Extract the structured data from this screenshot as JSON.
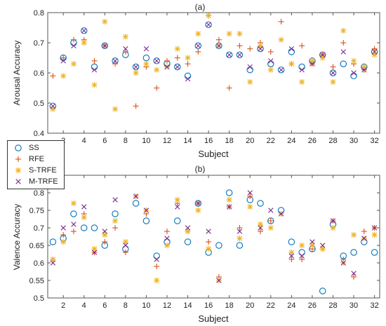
{
  "colors": {
    "SS": "#0072BD",
    "RFE": "#D95319",
    "S-TRFE": "#EDB120",
    "M-TRFE": "#7E2F8E"
  },
  "legend": {
    "items": [
      {
        "name": "SS",
        "marker": "circle"
      },
      {
        "name": "RFE",
        "marker": "plus"
      },
      {
        "name": "S-TRFE",
        "marker": "asterisk"
      },
      {
        "name": "M-TRFE",
        "marker": "cross"
      }
    ]
  },
  "chart_data": [
    {
      "type": "scatter",
      "title": "(a)",
      "xlabel": "Subject",
      "ylabel": "Arousal Accuracy",
      "xlim": [
        0.5,
        32.5
      ],
      "ylim": [
        0.4,
        0.8
      ],
      "yticks": [
        "0.4",
        "0.5",
        "0.6",
        "0.7",
        "0.8"
      ],
      "xticks": [
        "2",
        "4",
        "6",
        "8",
        "10",
        "12",
        "14",
        "16",
        "18",
        "20",
        "22",
        "24",
        "26",
        "28",
        "30",
        "32"
      ],
      "grid": false,
      "x": [
        1,
        2,
        3,
        4,
        5,
        6,
        7,
        8,
        9,
        10,
        11,
        12,
        13,
        14,
        15,
        16,
        17,
        18,
        19,
        20,
        21,
        22,
        23,
        24,
        25,
        26,
        27,
        28,
        29,
        30,
        31,
        32
      ],
      "series": [
        {
          "name": "SS",
          "values": [
            0.49,
            0.65,
            0.7,
            0.74,
            0.62,
            0.69,
            0.64,
            0.66,
            0.62,
            0.65,
            0.64,
            0.63,
            0.62,
            0.59,
            0.69,
            0.76,
            0.69,
            0.66,
            0.66,
            0.61,
            0.68,
            0.63,
            0.61,
            0.67,
            0.62,
            0.64,
            0.66,
            0.6,
            0.63,
            0.59,
            0.62,
            0.67
          ]
        },
        {
          "name": "RFE",
          "values": [
            0.59,
            0.65,
            0.71,
            0.71,
            0.64,
            0.69,
            0.63,
            0.67,
            0.49,
            0.62,
            0.55,
            0.64,
            0.65,
            0.63,
            0.67,
            0.79,
            0.71,
            0.55,
            0.69,
            0.68,
            0.7,
            0.67,
            0.77,
            0.63,
            0.69,
            0.63,
            0.66,
            0.62,
            0.7,
            0.63,
            0.61,
            0.68
          ]
        },
        {
          "name": "S-TRFE",
          "values": [
            0.48,
            0.59,
            0.63,
            0.7,
            0.56,
            0.77,
            0.48,
            0.72,
            0.6,
            0.63,
            0.61,
            0.62,
            0.68,
            0.65,
            0.73,
            0.79,
            0.69,
            0.73,
            0.73,
            0.57,
            0.69,
            0.61,
            0.71,
            0.63,
            0.57,
            0.64,
            0.65,
            0.57,
            0.74,
            0.64,
            0.62,
            0.66
          ]
        },
        {
          "name": "M-TRFE",
          "values": [
            0.49,
            0.64,
            0.69,
            0.74,
            0.61,
            0.69,
            0.64,
            0.68,
            0.62,
            0.68,
            0.64,
            0.62,
            0.62,
            0.58,
            0.69,
            0.76,
            0.69,
            0.66,
            0.66,
            0.62,
            0.68,
            0.64,
            0.61,
            0.68,
            0.61,
            0.63,
            0.66,
            0.6,
            0.67,
            0.6,
            0.61,
            0.67
          ]
        }
      ]
    },
    {
      "type": "scatter",
      "title": "(b)",
      "xlabel": "Subject",
      "ylabel": "Valence Accuracy",
      "xlim": [
        0.5,
        32.5
      ],
      "ylim": [
        0.5,
        0.85
      ],
      "yticks": [
        "0.5",
        "0.55",
        "0.6",
        "0.65",
        "0.7",
        "0.75",
        "0.8"
      ],
      "xticks": [
        "2",
        "4",
        "6",
        "8",
        "10",
        "12",
        "14",
        "16",
        "18",
        "20",
        "22",
        "24",
        "26",
        "28",
        "30",
        "32"
      ],
      "grid": false,
      "x": [
        1,
        2,
        3,
        4,
        5,
        6,
        7,
        8,
        9,
        10,
        11,
        12,
        13,
        14,
        15,
        16,
        17,
        18,
        19,
        20,
        21,
        22,
        23,
        24,
        25,
        26,
        27,
        28,
        29,
        30,
        31,
        32
      ],
      "series": [
        {
          "name": "SS",
          "values": [
            0.66,
            0.67,
            0.74,
            0.7,
            0.7,
            0.65,
            0.74,
            0.64,
            0.77,
            0.72,
            0.62,
            0.66,
            0.72,
            0.66,
            0.77,
            0.63,
            0.65,
            0.8,
            0.65,
            0.78,
            0.77,
            0.72,
            0.75,
            0.66,
            0.63,
            0.64,
            0.52,
            0.71,
            0.62,
            0.63,
            0.66,
            0.63
          ]
        },
        {
          "name": "RFE",
          "values": [
            0.61,
            0.68,
            0.69,
            0.74,
            0.63,
            0.66,
            0.7,
            0.63,
            0.79,
            0.74,
            0.59,
            0.69,
            0.77,
            0.69,
            0.77,
            0.66,
            0.56,
            0.76,
            0.7,
            0.79,
            0.69,
            0.72,
            0.74,
            0.61,
            0.61,
            0.64,
            0.64,
            0.72,
            0.61,
            0.56,
            0.69,
            0.7
          ]
        },
        {
          "name": "S-TRFE",
          "values": [
            0.61,
            0.66,
            0.77,
            0.73,
            0.64,
            0.68,
            0.72,
            0.66,
            0.79,
            0.75,
            0.55,
            0.65,
            0.78,
            0.69,
            0.75,
            0.64,
            0.55,
            0.78,
            0.67,
            0.76,
            0.71,
            0.7,
            0.74,
            0.63,
            0.65,
            0.65,
            0.64,
            0.7,
            0.6,
            0.68,
            0.67,
            0.68
          ]
        },
        {
          "name": "M-TRFE",
          "values": [
            0.6,
            0.7,
            0.71,
            0.76,
            0.63,
            0.69,
            0.78,
            0.65,
            0.79,
            0.75,
            0.61,
            0.67,
            0.76,
            0.7,
            0.77,
            0.69,
            0.55,
            0.76,
            0.69,
            0.8,
            0.7,
            0.75,
            0.74,
            0.62,
            0.62,
            0.66,
            0.65,
            0.72,
            0.6,
            0.57,
            0.67,
            0.7
          ]
        }
      ]
    }
  ]
}
